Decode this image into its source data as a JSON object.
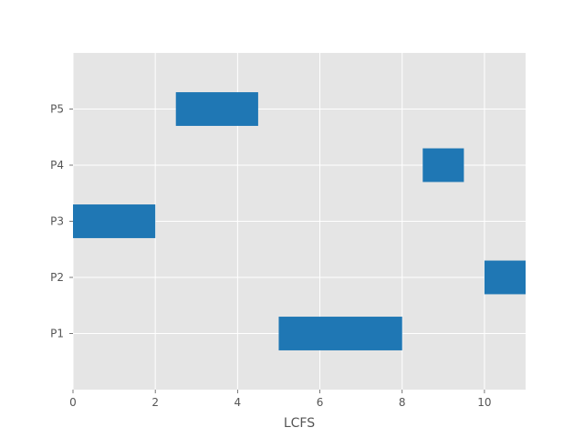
{
  "chart_data": {
    "type": "bar",
    "orientation": "horizontal",
    "title": "",
    "xlabel": "LCFS",
    "ylabel": "",
    "categories": [
      "P1",
      "P2",
      "P3",
      "P4",
      "P5"
    ],
    "bars": [
      {
        "category": "P1",
        "start": 5,
        "end": 8
      },
      {
        "category": "P2",
        "start": 10,
        "end": 11
      },
      {
        "category": "P3",
        "start": 0,
        "end": 2
      },
      {
        "category": "P4",
        "start": 8.5,
        "end": 9.5
      },
      {
        "category": "P5",
        "start": 2.5,
        "end": 4.5
      }
    ],
    "xlim": [
      0,
      11
    ],
    "xticks": [
      "0",
      "2",
      "4",
      "6",
      "8",
      "10"
    ],
    "grid": true,
    "colors": {
      "bar": "#1f77b4",
      "plot_background": "#e5e5e5",
      "grid": "#ffffff",
      "text": "#555555"
    }
  }
}
